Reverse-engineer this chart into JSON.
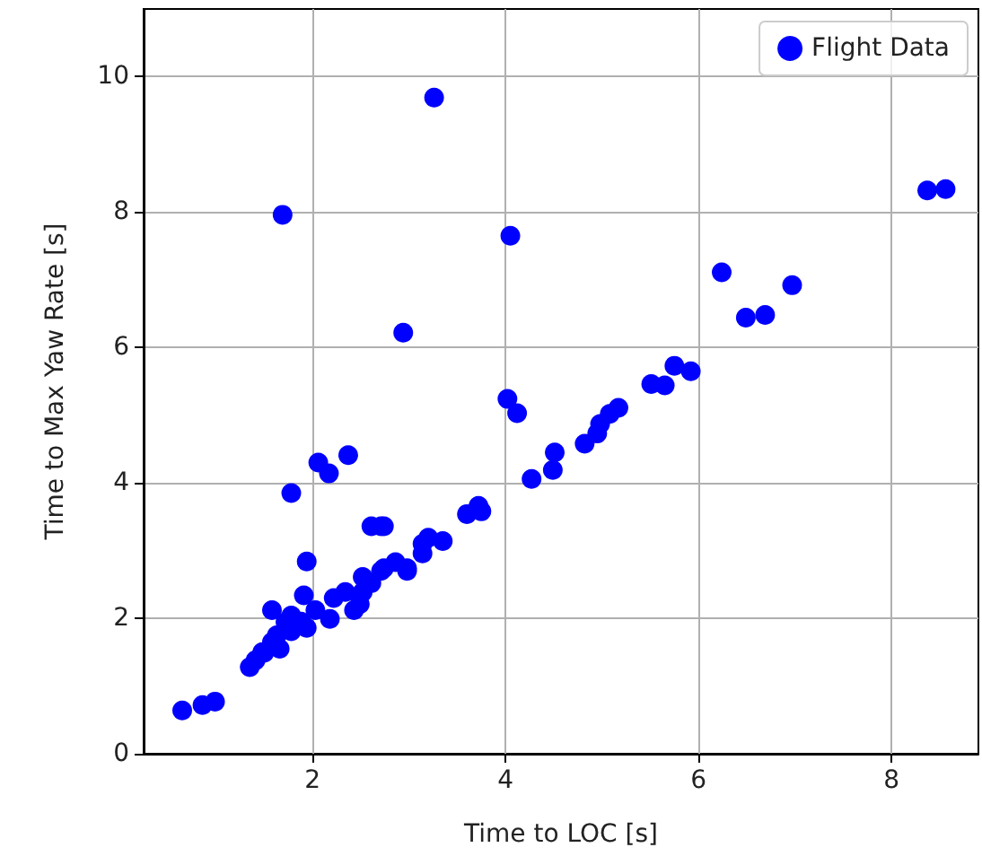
{
  "chart_data": {
    "type": "scatter",
    "xlabel": "Time to LOC [s]",
    "ylabel": "Time to Max Yaw Rate [s]",
    "xlim": [
      0.25,
      8.9
    ],
    "ylim": [
      0,
      11
    ],
    "xticks": [
      2,
      4,
      6,
      8
    ],
    "yticks": [
      0,
      2,
      4,
      6,
      8,
      10
    ],
    "grid": true,
    "legend": "top right",
    "marker": "circle",
    "series": [
      {
        "name": "Flight Data",
        "color": "#0000ff",
        "x": [
          0.65,
          0.86,
          0.99,
          1.35,
          1.41,
          1.48,
          1.5,
          1.58,
          1.63,
          1.66,
          1.72,
          1.78,
          1.78,
          1.88,
          1.94,
          1.58,
          1.69,
          1.78,
          1.94,
          1.91,
          2.03,
          2.06,
          2.17,
          2.18,
          2.22,
          2.34,
          2.37,
          2.43,
          2.49,
          2.52,
          2.52,
          2.61,
          2.61,
          2.71,
          2.71,
          2.74,
          2.74,
          2.86,
          2.94,
          2.98,
          2.98,
          3.14,
          3.14,
          3.2,
          3.26,
          3.35,
          3.6,
          3.72,
          3.75,
          4.02,
          4.05,
          4.12,
          4.27,
          4.49,
          4.51,
          4.82,
          4.95,
          4.98,
          5.08,
          5.17,
          5.51,
          5.65,
          5.75,
          5.92,
          6.24,
          6.49,
          6.69,
          6.97,
          8.37,
          8.56
        ],
        "values": [
          0.64,
          0.72,
          0.77,
          1.28,
          1.38,
          1.5,
          1.49,
          1.65,
          1.75,
          1.55,
          1.94,
          2.04,
          1.81,
          1.95,
          1.86,
          2.12,
          7.96,
          3.85,
          2.84,
          2.34,
          2.12,
          4.3,
          4.14,
          1.99,
          2.3,
          2.39,
          4.41,
          2.12,
          2.21,
          2.39,
          2.61,
          2.52,
          3.36,
          2.7,
          3.36,
          3.36,
          2.74,
          2.83,
          6.22,
          2.74,
          2.7,
          2.96,
          3.1,
          3.19,
          9.69,
          3.14,
          3.54,
          3.66,
          3.58,
          5.24,
          7.65,
          5.03,
          4.06,
          4.19,
          4.45,
          4.58,
          4.73,
          4.87,
          5.02,
          5.11,
          5.46,
          5.44,
          5.73,
          5.65,
          7.11,
          6.44,
          6.48,
          6.92,
          8.32,
          8.34
        ]
      }
    ]
  }
}
